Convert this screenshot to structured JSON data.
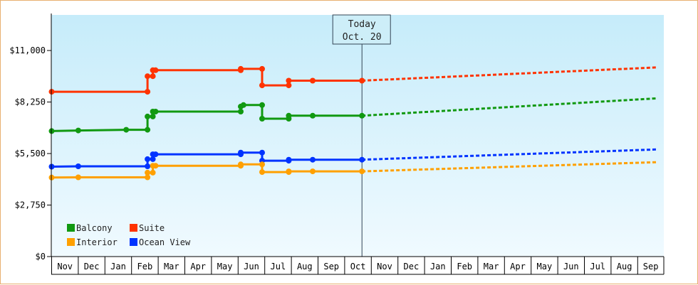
{
  "chart_data": {
    "type": "line",
    "title": "",
    "xlabel": "",
    "ylabel": "",
    "y_tick_labels": [
      "$0",
      "$2,750",
      "$5,500",
      "$8,250",
      "$11,000"
    ],
    "y_ticks": [
      0,
      2750,
      5500,
      8250,
      11000
    ],
    "ylim": [
      0,
      12900
    ],
    "x_tick_labels": [
      "Nov",
      "Dec",
      "Jan",
      "Feb",
      "Mar",
      "Apr",
      "May",
      "Jun",
      "Jul",
      "Aug",
      "Sep",
      "Oct",
      "Nov",
      "Dec",
      "Jan",
      "Feb",
      "Mar",
      "Apr",
      "May",
      "Jun",
      "Jul",
      "Aug",
      "Sep"
    ],
    "xlim": [
      0,
      22.75
    ],
    "today": {
      "label": "Today",
      "date": "Oct. 20",
      "x": 11.65
    },
    "legend_position": "bottom-left",
    "grid": false,
    "series": [
      {
        "name": "Suite",
        "color": "#ff3300",
        "historical": [
          [
            0,
            8800
          ],
          [
            3.6,
            8800
          ],
          [
            3.6,
            9630
          ],
          [
            3.8,
            9630
          ],
          [
            3.8,
            9950
          ],
          [
            3.9,
            9950
          ],
          [
            7.1,
            9950
          ],
          [
            7.1,
            10020
          ],
          [
            7.9,
            10020
          ],
          [
            7.9,
            9140
          ],
          [
            8.9,
            9140
          ],
          [
            8.9,
            9390
          ],
          [
            9.8,
            9390
          ],
          [
            11.65,
            9390
          ]
        ],
        "forecast": [
          [
            11.65,
            9390
          ],
          [
            22.75,
            10100
          ]
        ]
      },
      {
        "name": "Balcony",
        "color": "#119911",
        "historical": [
          [
            0,
            6700
          ],
          [
            1,
            6730
          ],
          [
            2.8,
            6770
          ],
          [
            3.6,
            6770
          ],
          [
            3.6,
            7480
          ],
          [
            3.8,
            7480
          ],
          [
            3.8,
            7740
          ],
          [
            3.9,
            7740
          ],
          [
            7.1,
            7740
          ],
          [
            7.1,
            8010
          ],
          [
            7.2,
            8090
          ],
          [
            7.9,
            8090
          ],
          [
            7.9,
            7360
          ],
          [
            8.9,
            7360
          ],
          [
            8.9,
            7520
          ],
          [
            9.8,
            7520
          ],
          [
            11.65,
            7520
          ]
        ],
        "forecast": [
          [
            11.65,
            7520
          ],
          [
            22.75,
            8450
          ]
        ]
      },
      {
        "name": "Ocean View",
        "color": "#0033ff",
        "historical": [
          [
            0,
            4800
          ],
          [
            1,
            4820
          ],
          [
            3.6,
            4820
          ],
          [
            3.6,
            5200
          ],
          [
            3.8,
            5200
          ],
          [
            3.8,
            5460
          ],
          [
            3.9,
            5460
          ],
          [
            7.1,
            5460
          ],
          [
            7.1,
            5550
          ],
          [
            7.9,
            5550
          ],
          [
            7.9,
            5120
          ],
          [
            8.9,
            5120
          ],
          [
            8.9,
            5170
          ],
          [
            9.8,
            5170
          ],
          [
            11.65,
            5170
          ]
        ],
        "forecast": [
          [
            11.65,
            5170
          ],
          [
            22.75,
            5720
          ]
        ]
      },
      {
        "name": "Interior",
        "color": "#ffa000",
        "historical": [
          [
            0,
            4220
          ],
          [
            1,
            4230
          ],
          [
            3.6,
            4230
          ],
          [
            3.6,
            4480
          ],
          [
            3.8,
            4480
          ],
          [
            3.8,
            4850
          ],
          [
            3.9,
            4850
          ],
          [
            7.1,
            4850
          ],
          [
            7.1,
            4920
          ],
          [
            7.9,
            4920
          ],
          [
            7.9,
            4510
          ],
          [
            8.9,
            4510
          ],
          [
            8.9,
            4550
          ],
          [
            9.8,
            4550
          ],
          [
            11.65,
            4550
          ]
        ],
        "forecast": [
          [
            11.65,
            4550
          ],
          [
            22.75,
            5040
          ]
        ]
      }
    ],
    "legend": [
      {
        "name": "Balcony",
        "color": "#119911"
      },
      {
        "name": "Suite",
        "color": "#ff3300"
      },
      {
        "name": "Interior",
        "color": "#ffa000"
      },
      {
        "name": "Ocean View",
        "color": "#0033ff"
      }
    ]
  }
}
